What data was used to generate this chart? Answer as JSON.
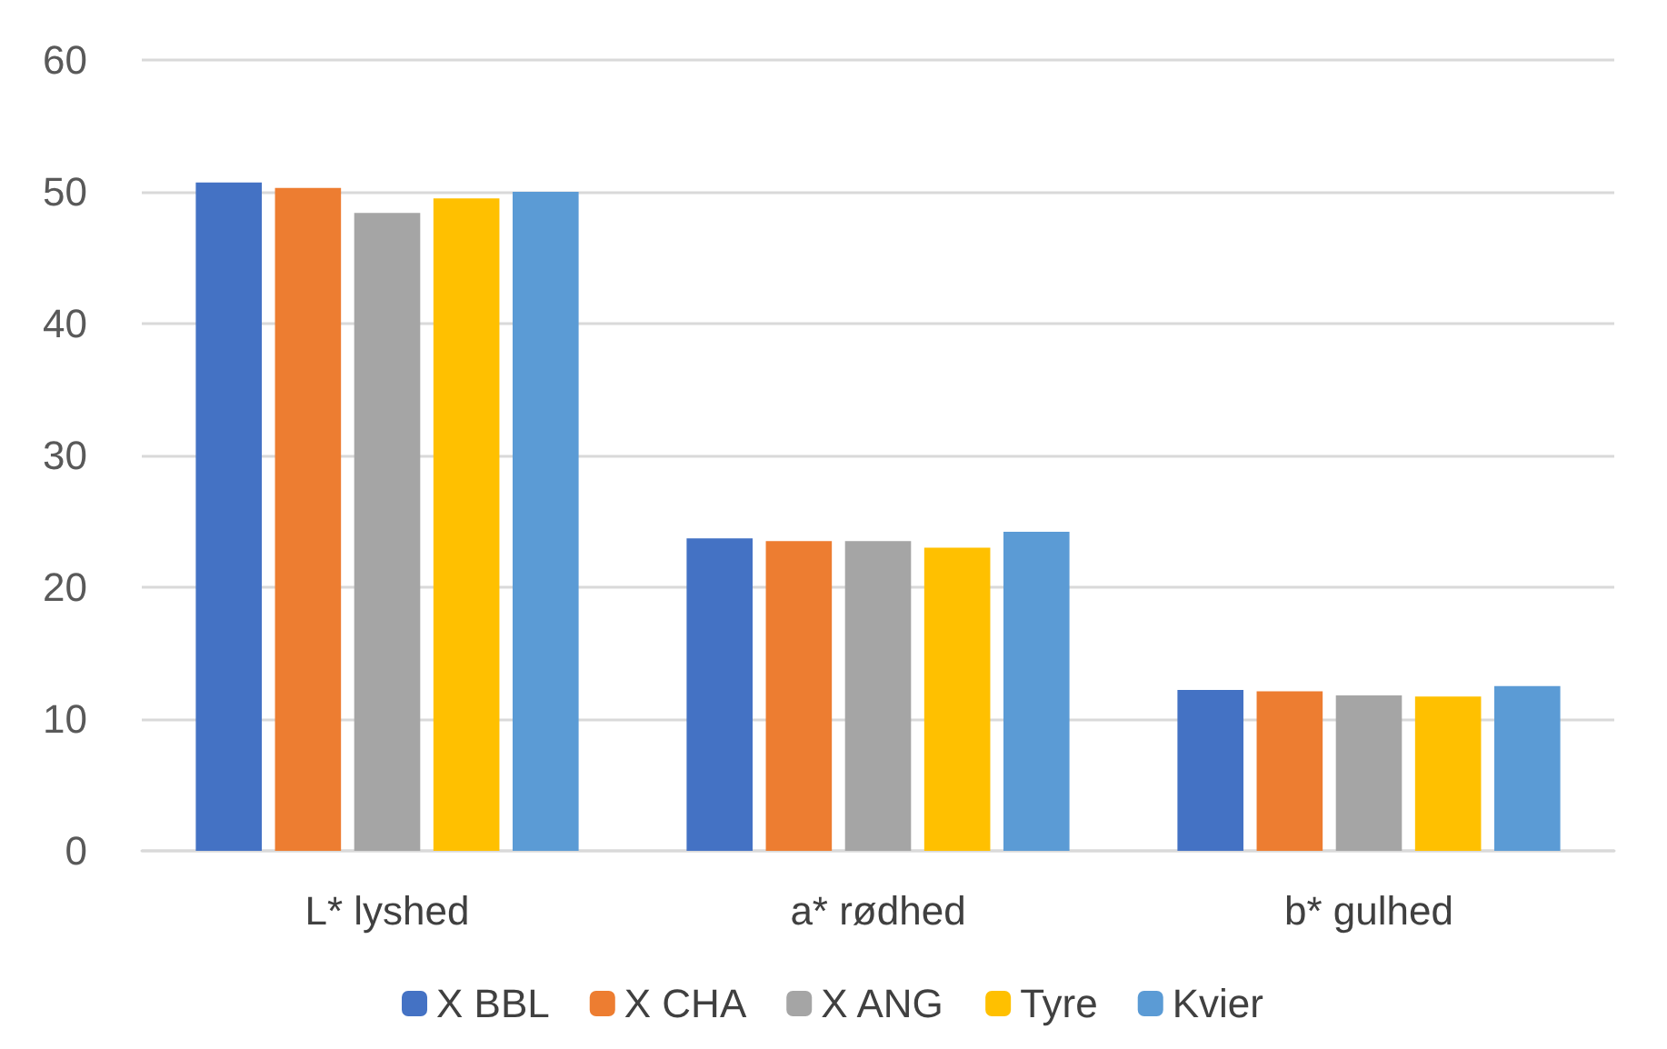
{
  "chart_data": {
    "type": "bar",
    "categories": [
      "L* lyshed",
      "a* rødhed",
      "b* gulhed"
    ],
    "series": [
      {
        "name": "X BBL",
        "color": "#4472c4",
        "values": [
          50.7,
          23.7,
          12.2
        ]
      },
      {
        "name": "X CHA",
        "color": "#ed7d31",
        "values": [
          50.3,
          23.5,
          12.1
        ]
      },
      {
        "name": "X ANG",
        "color": "#a5a5a5",
        "values": [
          48.4,
          23.5,
          11.8
        ]
      },
      {
        "name": "Tyre",
        "color": "#ffc000",
        "values": [
          49.5,
          23.0,
          11.7
        ]
      },
      {
        "name": "Kvier",
        "color": "#5b9bd5",
        "values": [
          50.0,
          24.2,
          12.5
        ]
      }
    ],
    "ylim": [
      0,
      60
    ],
    "yticks": [
      0,
      10,
      20,
      30,
      40,
      50,
      60
    ],
    "grid": "y",
    "legend": "bottom"
  }
}
